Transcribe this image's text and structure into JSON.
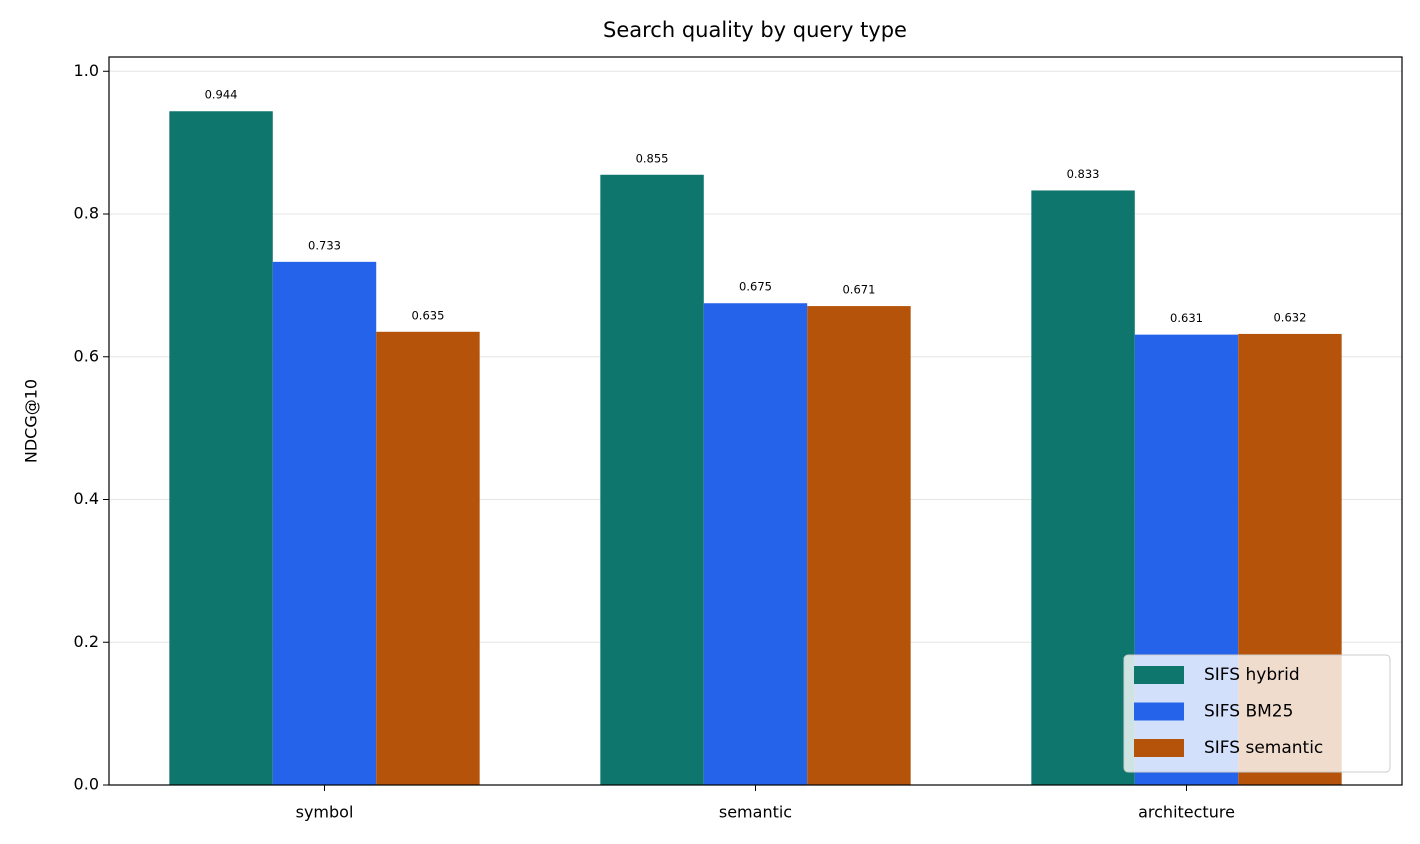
{
  "chart_data": {
    "type": "bar",
    "title": "Search quality by query type",
    "ylabel": "NDCG@10",
    "categories": [
      "symbol",
      "semantic",
      "architecture"
    ],
    "series": [
      {
        "name": "SIFS hybrid",
        "color": "#0f766e",
        "values": [
          0.944,
          0.855,
          0.833
        ]
      },
      {
        "name": "SIFS BM25",
        "color": "#2563eb",
        "values": [
          0.733,
          0.675,
          0.631
        ]
      },
      {
        "name": "SIFS semantic",
        "color": "#b45309",
        "values": [
          0.635,
          0.671,
          0.632
        ]
      }
    ],
    "ylim": [
      0,
      1.02
    ],
    "yticks": [
      {
        "value": 0,
        "label": "0.0"
      },
      0.2,
      0.4,
      0.6,
      0.8,
      {
        "value": 1,
        "label": "1.0"
      }
    ],
    "grid": true,
    "legend": "lower right"
  }
}
